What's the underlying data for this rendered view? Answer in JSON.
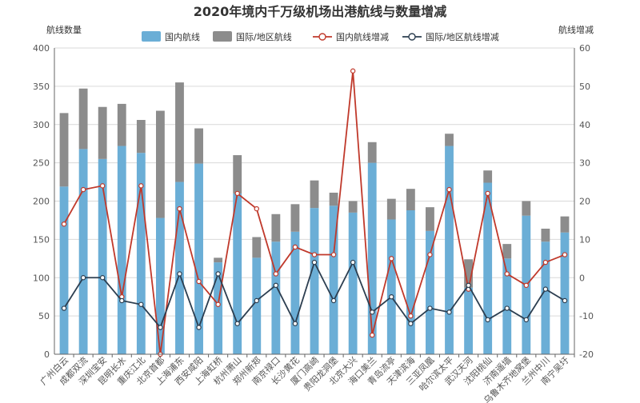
{
  "chart_data": {
    "type": "bar",
    "title": "2020年境内千万级机场出港航线与数量增减",
    "ylabel_left": "航线数量",
    "ylabel_right": "航线增减",
    "ylim_left": [
      0,
      400
    ],
    "yticks_left": [
      0,
      50,
      100,
      150,
      200,
      250,
      300,
      350,
      400
    ],
    "ylim_right": [
      -20,
      60
    ],
    "yticks_right": [
      -20,
      -10,
      0,
      10,
      20,
      30,
      40,
      50,
      60
    ],
    "grid": true,
    "legend_position": "top",
    "stacked": true,
    "categories": [
      "广州白云",
      "成都双流",
      "深圳宝安",
      "昆明长水",
      "重庆江北",
      "北京首都",
      "上海浦东",
      "西安咸阳",
      "上海虹桥",
      "杭州萧山",
      "郑州新郑",
      "南京禄口",
      "长沙黄花",
      "厦门高崎",
      "贵阳龙洞堡",
      "北京大兴",
      "海口美兰",
      "青岛流亭",
      "天津滨海",
      "三亚凤凰",
      "哈尔滨太平",
      "武汉天河",
      "沈阳桃仙",
      "济南遥墙",
      "乌鲁木齐地窝堡",
      "兰州中川",
      "南宁吴圩"
    ],
    "series": [
      {
        "name": "国内航线",
        "kind": "bar",
        "axis": "left",
        "color": "#6baed6",
        "values": [
          219,
          268,
          255,
          272,
          263,
          178,
          225,
          249,
          120,
          210,
          126,
          147,
          160,
          191,
          194,
          185,
          250,
          176,
          188,
          161,
          272,
          87,
          224,
          125,
          181,
          147,
          159
        ]
      },
      {
        "name": "国际/地区航线",
        "kind": "bar",
        "axis": "left",
        "color": "#8c8c8c",
        "values": [
          96,
          79,
          68,
          55,
          43,
          140,
          130,
          46,
          6,
          50,
          27,
          36,
          36,
          36,
          17,
          15,
          27,
          27,
          28,
          31,
          16,
          37,
          16,
          19,
          19,
          17,
          21
        ]
      },
      {
        "name": "国内航线增减",
        "kind": "line",
        "axis": "right",
        "color": "#c0392b",
        "values": [
          14,
          23,
          24,
          -5,
          24,
          -20,
          18,
          -1,
          -7,
          22,
          18,
          1,
          8,
          6,
          6,
          54,
          -15,
          5,
          -10,
          6,
          23,
          -3,
          22,
          1,
          -2,
          4,
          6
        ]
      },
      {
        "name": "国际/地区航线增减",
        "kind": "line",
        "axis": "right",
        "color": "#2c3e50",
        "values": [
          -8,
          0,
          0,
          -6,
          -7,
          -13,
          1,
          -13,
          1,
          -12,
          -6,
          -2,
          -12,
          4,
          -6,
          4,
          -9,
          -5,
          -12,
          -8,
          -9,
          -2,
          -11,
          -8,
          -11,
          -3,
          -6
        ]
      }
    ]
  }
}
